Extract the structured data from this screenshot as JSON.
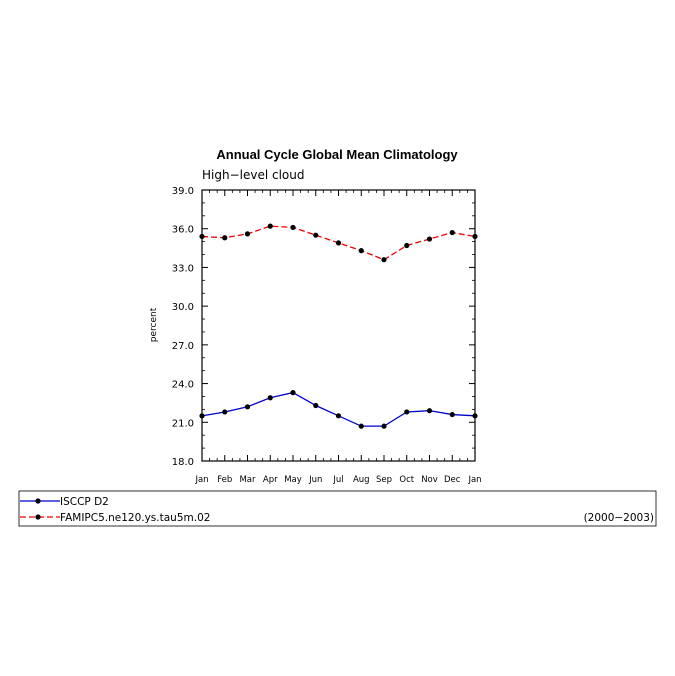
{
  "chart_data": {
    "type": "line",
    "title": "Annual Cycle Global Mean Climatology",
    "subtitle": "High−level cloud",
    "ylabel": "percent",
    "xlabel": "",
    "ylim": [
      18.0,
      39.0
    ],
    "yticks": [
      "18.0",
      "21.0",
      "24.0",
      "27.0",
      "30.0",
      "33.0",
      "36.0",
      "39.0"
    ],
    "categories": [
      "Jan",
      "Feb",
      "Mar",
      "Apr",
      "May",
      "Jun",
      "Jul",
      "Aug",
      "Sep",
      "Oct",
      "Nov",
      "Dec",
      "Jan"
    ],
    "series": [
      {
        "name": "ISCCP D2",
        "color": "#0000cc",
        "dash": "solid",
        "values": [
          21.5,
          21.8,
          22.2,
          22.9,
          23.3,
          22.3,
          21.5,
          20.7,
          20.7,
          21.8,
          21.9,
          21.6,
          21.5
        ]
      },
      {
        "name": "FAMIPC5.ne120.ys.tau5m.02",
        "color": "#ee0000",
        "dash": "dashed",
        "values": [
          35.4,
          35.3,
          35.6,
          36.2,
          36.1,
          35.5,
          34.9,
          34.3,
          33.6,
          34.7,
          35.2,
          35.7,
          35.4
        ]
      }
    ],
    "legend": {
      "placement": "bottom",
      "period": "(2000−2003)"
    }
  }
}
